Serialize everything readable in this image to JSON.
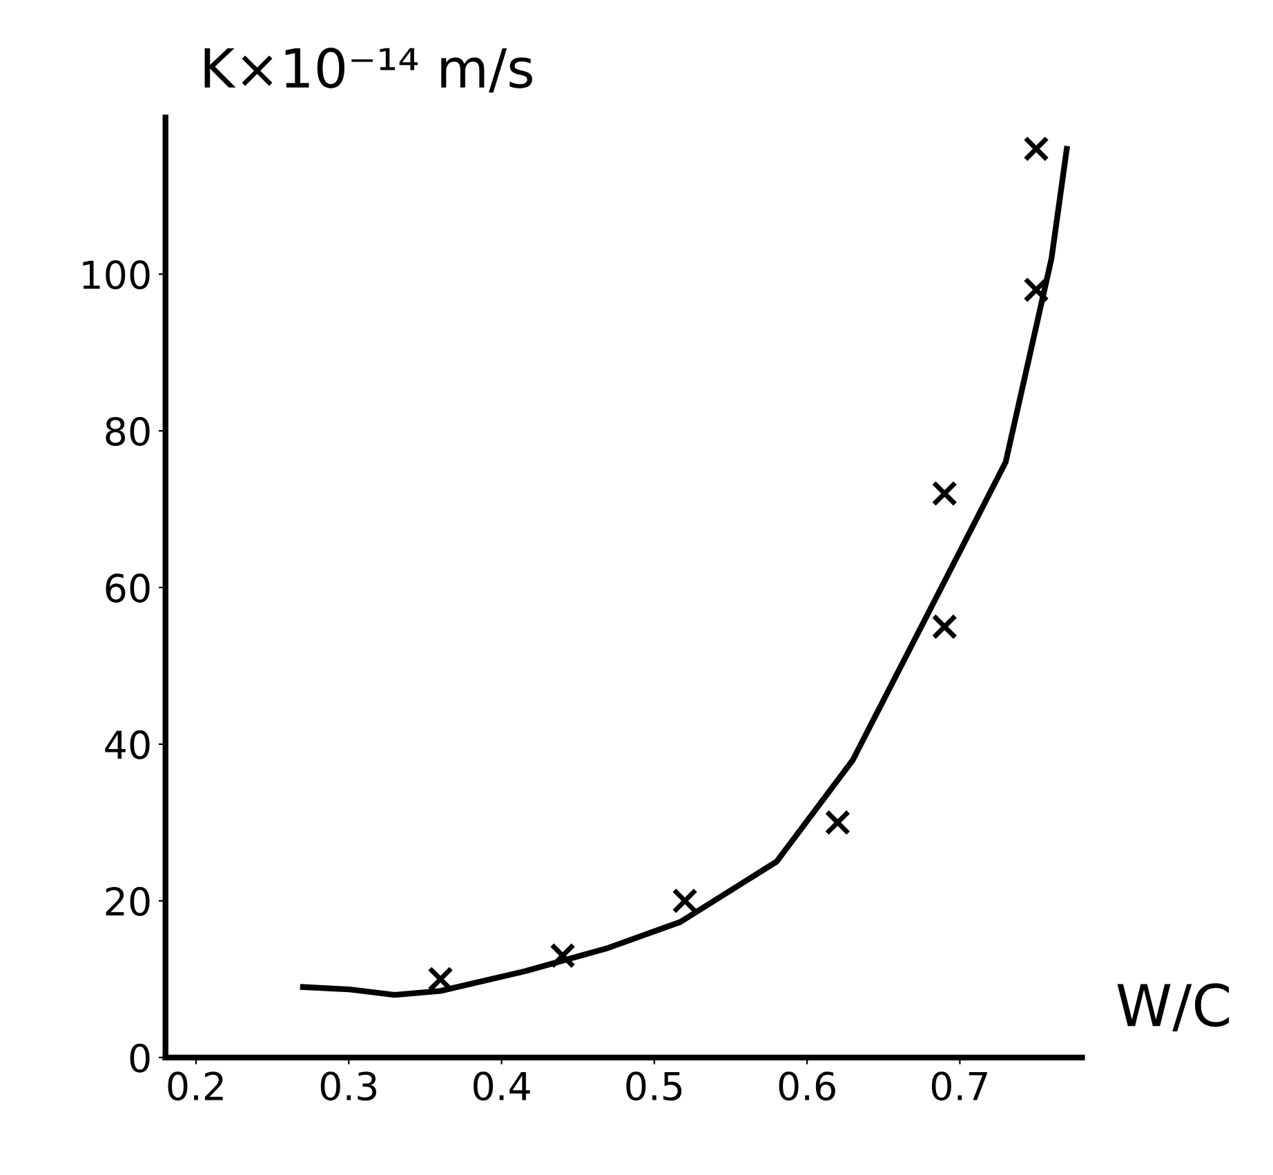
{
  "chart_data": {
    "type": "scatter",
    "xlabel": "W/C",
    "ylabel": "K×10⁻¹⁴ m/s",
    "xlim": [
      0.18,
      0.78
    ],
    "ylim": [
      0,
      120
    ],
    "xticks": [
      0.2,
      0.3,
      0.4,
      0.5,
      0.6,
      0.7
    ],
    "yticks": [
      0,
      20,
      40,
      60,
      80,
      100
    ],
    "grid": false,
    "legend": false,
    "series": [
      {
        "marker": "cross",
        "color": "#000000",
        "x": [
          0.36,
          0.44,
          0.52,
          0.62,
          0.69,
          0.69,
          0.75,
          0.75
        ],
        "values": [
          10,
          13,
          20,
          30,
          55,
          72,
          98,
          116
        ]
      },
      {
        "type": "line",
        "line_style": "solid",
        "color": "#000000",
        "x": [
          0.27,
          0.3,
          0.33,
          0.36,
          0.415,
          0.47,
          0.517,
          0.58,
          0.63,
          0.68,
          0.73,
          0.76,
          0.77
        ],
        "values": [
          9,
          8.7,
          8,
          8.5,
          11,
          14,
          17.3,
          25,
          38,
          57,
          76,
          102,
          116
        ]
      }
    ]
  }
}
